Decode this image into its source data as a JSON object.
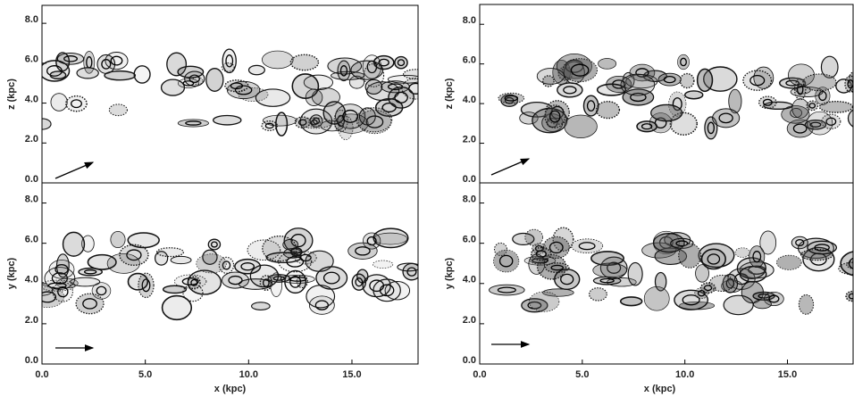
{
  "chart_data": [
    {
      "type": "image",
      "ylabel": "z (kpc)",
      "xlim": [
        0,
        18.2
      ],
      "ylim": [
        0,
        8.9
      ],
      "yticks": [
        {
          "value": 0,
          "label": "0.0"
        },
        {
          "value": 2,
          "label": "2.0"
        },
        {
          "value": 4,
          "label": "4.0"
        },
        {
          "value": 6,
          "label": "6.0"
        },
        {
          "value": 8,
          "label": "8.0"
        }
      ]
    },
    {
      "type": "image",
      "ylabel": "y (kpc)",
      "xlabel": "x (kpc)",
      "xlim": [
        0,
        18.2
      ],
      "ylim": [
        0,
        9
      ],
      "xticks": [
        {
          "value": 0,
          "label": "0.0"
        },
        {
          "value": 5,
          "label": "5.0"
        },
        {
          "value": 10,
          "label": "10.0"
        },
        {
          "value": 15,
          "label": "15.0"
        }
      ],
      "yticks": [
        {
          "value": 0,
          "label": "0.0"
        },
        {
          "value": 2,
          "label": "2.0"
        },
        {
          "value": 4,
          "label": "4.0"
        },
        {
          "value": 6,
          "label": "6.0"
        },
        {
          "value": 8,
          "label": "8.0"
        }
      ]
    },
    {
      "type": "image",
      "ylabel": "z (kpc)",
      "xlim": [
        0,
        18.2
      ],
      "ylim": [
        0,
        9
      ],
      "yticks": [
        {
          "value": 0,
          "label": "0.0"
        },
        {
          "value": 2,
          "label": "2.0"
        },
        {
          "value": 4,
          "label": "4.0"
        },
        {
          "value": 6,
          "label": "6.0"
        },
        {
          "value": 8,
          "label": "8.0"
        }
      ]
    },
    {
      "type": "image",
      "ylabel": "y (kpc)",
      "xlabel": "x (kpc)",
      "xlim": [
        0,
        18.2
      ],
      "ylim": [
        0,
        9
      ],
      "xticks": [
        {
          "value": 0,
          "label": "0.0"
        },
        {
          "value": 5,
          "label": "5.0"
        },
        {
          "value": 10,
          "label": "10.0"
        },
        {
          "value": 15,
          "label": "15.0"
        }
      ],
      "yticks": [
        {
          "value": 0,
          "label": "0.0"
        },
        {
          "value": 2,
          "label": "2.0"
        },
        {
          "value": 4,
          "label": "4.0"
        },
        {
          "value": 6,
          "label": "6.0"
        },
        {
          "value": 8,
          "label": "8.0"
        }
      ]
    }
  ]
}
